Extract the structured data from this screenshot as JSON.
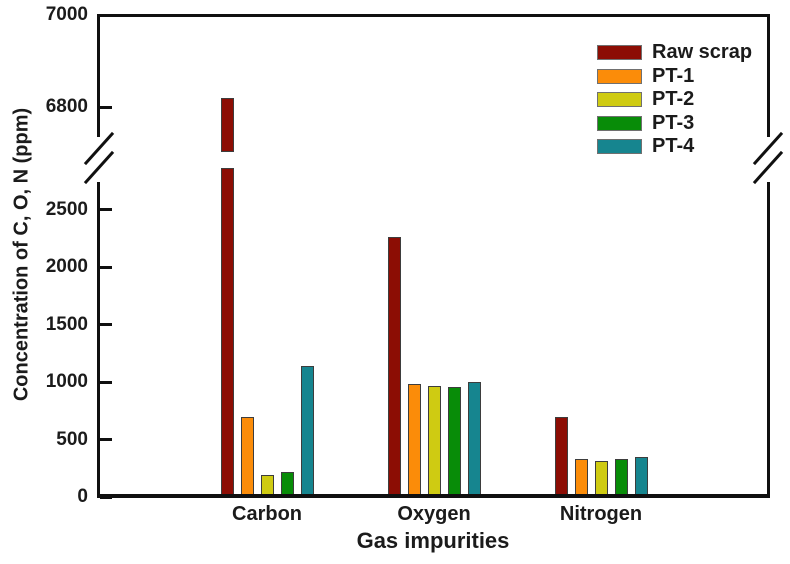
{
  "chart_data": {
    "type": "bar",
    "title": "",
    "xlabel": "Gas impurities",
    "ylabel": "Concentration of C, O, N (ppm)",
    "categories": [
      "Carbon",
      "Oxygen",
      "Nitrogen"
    ],
    "series": [
      {
        "name": "Raw scrap",
        "color": "#8C0D04",
        "values": [
          6820,
          2260,
          700
        ]
      },
      {
        "name": "PT-1",
        "color": "#FB8C09",
        "values": [
          700,
          980,
          330
        ]
      },
      {
        "name": "PT-2",
        "color": "#CFCB12",
        "values": [
          190,
          965,
          310
        ]
      },
      {
        "name": "PT-3",
        "color": "#088C08",
        "values": [
          220,
          955,
          330
        ]
      },
      {
        "name": "PT-4",
        "color": "#16858F",
        "values": [
          1140,
          1000,
          345
        ]
      }
    ],
    "axis_break": {
      "lower_max": 2700,
      "upper_min": 6800,
      "upper_max": 7000
    },
    "y_ticks_lower": [
      0,
      500,
      1000,
      1500,
      2000,
      2500
    ],
    "y_ticks_upper": [
      6800,
      7000
    ],
    "ylim_lower": [
      0,
      2700
    ],
    "ylim_upper": [
      6735,
      7000
    ],
    "legend_position": "top-right",
    "grid": false,
    "frame_color": "#101010",
    "bar_border_color": "#3d3d3d"
  }
}
